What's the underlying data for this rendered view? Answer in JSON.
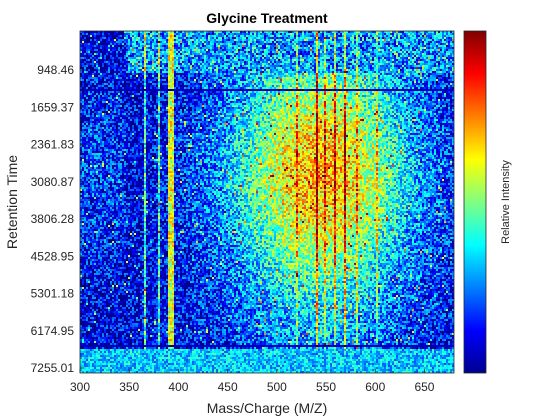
{
  "chart_data": {
    "type": "heatmap",
    "title": "Glycine Treatment",
    "xlabel": "Mass/Charge (M/Z)",
    "ylabel": "Retention Time",
    "colorbar_label": "Relative Intensity",
    "colormap": "jet",
    "xlim": [
      300,
      680
    ],
    "xticks": [
      300,
      350,
      400,
      450,
      500,
      550,
      600,
      650
    ],
    "xtick_labels": [
      "300",
      "350",
      "400",
      "450",
      "500",
      "550",
      "600",
      "650"
    ],
    "ytick_labels": [
      "948.46",
      "1659.37",
      "2361.83",
      "3080.87",
      "3806.28",
      "4528.95",
      "5301.18",
      "6174.95",
      "7255.01"
    ],
    "y_direction": "reversed",
    "intensity_range": [
      0,
      1
    ],
    "regions": [
      {
        "desc": "low intensity background",
        "x": [
          300,
          360
        ],
        "intensity": 0.12
      },
      {
        "desc": "vertical streak",
        "x": [
          389,
          395
        ],
        "intensity": 0.6
      },
      {
        "desc": "high intensity cluster",
        "x": [
          470,
          640
        ],
        "intensity": 0.55
      }
    ]
  },
  "colors": {
    "background": "#ffffff",
    "axis": "#262626",
    "jet_low": "#00008f",
    "jet_mid": "#80ff80",
    "jet_high": "#800000"
  }
}
